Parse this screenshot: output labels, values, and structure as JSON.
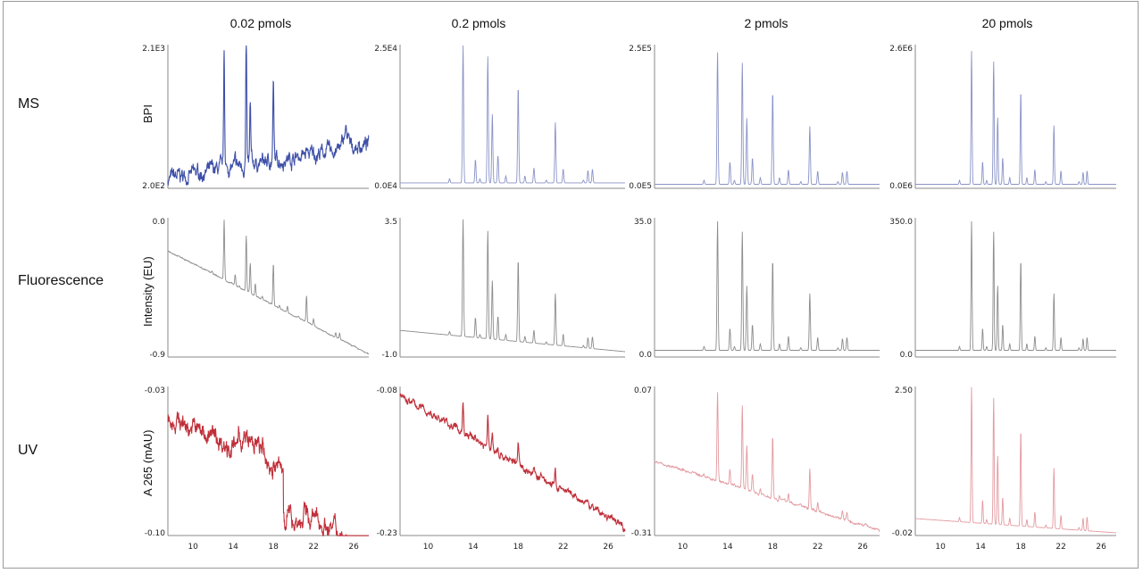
{
  "chart_data": {
    "type": "line",
    "title": "",
    "column_titles": [
      "0.02 pmols",
      "0.2 pmols",
      "2 pmols",
      "20 pmols"
    ],
    "row_labels": [
      "MS",
      "Fluorescence",
      "UV"
    ],
    "ylabels": [
      "BPI",
      "Intensity (EU)",
      "A 265  (mAU)"
    ],
    "xlabel": "",
    "x_ticks": [
      10,
      14,
      18,
      22,
      26
    ],
    "xlim": [
      7.5,
      27.5
    ],
    "peak_times": [
      11.9,
      13.1,
      14.2,
      14.6,
      15.3,
      15.7,
      16.2,
      16.9,
      18.0,
      18.6,
      19.4,
      20.5,
      21.3,
      22.0,
      23.8,
      24.2,
      24.6
    ],
    "peak_rel_heights": [
      0.03,
      1.0,
      0.17,
      0.03,
      0.92,
      0.5,
      0.2,
      0.05,
      0.7,
      0.05,
      0.11,
      0.02,
      0.44,
      0.1,
      0.02,
      0.09,
      0.1
    ],
    "colors": {
      "MS": "#3d4fa8",
      "MS_light": "#8a93c7",
      "Fluorescence": "#8c8c8c",
      "UV": "#c0303a",
      "UV_light": "#e39aa0"
    },
    "panels": [
      {
        "row": "MS",
        "column": "0.02 pmols",
        "ylim_labels": [
          "2.0E2",
          "2.1E3"
        ],
        "style": "noisy",
        "signal": 0.9,
        "baseline_trend": [
          0.05,
          0.3
        ],
        "noise": 0.06
      },
      {
        "row": "MS",
        "column": "0.2 pmols",
        "ylim_labels": [
          "0.0E4",
          "2.5E4"
        ],
        "style": "clean",
        "signal": 1.0,
        "baseline_trend": [
          0.02,
          0.02
        ],
        "noise": 0.0
      },
      {
        "row": "MS",
        "column": "2 pmols",
        "ylim_labels": [
          "0.0E5",
          "2.5E5"
        ],
        "style": "clean",
        "signal": 0.96,
        "baseline_trend": [
          0.01,
          0.01
        ],
        "noise": 0.0
      },
      {
        "row": "MS",
        "column": "20 pmols",
        "ylim_labels": [
          "0.0E6",
          "2.6E6"
        ],
        "style": "clean",
        "signal": 0.97,
        "baseline_trend": [
          0.01,
          0.01
        ],
        "noise": 0.0
      },
      {
        "row": "Fluorescence",
        "column": "0.02 pmols",
        "ylim_labels": [
          "-0.9",
          "0.0"
        ],
        "style": "sloped",
        "signal": 0.45,
        "baseline_trend": [
          0.78,
          0.0
        ],
        "noise": 0.005
      },
      {
        "row": "Fluorescence",
        "column": "0.2 pmols",
        "ylim_labels": [
          "-1.0",
          "3.5"
        ],
        "style": "sloped",
        "signal": 0.88,
        "baseline_trend": [
          0.18,
          0.02
        ],
        "noise": 0.0
      },
      {
        "row": "Fluorescence",
        "column": "2 pmols",
        "ylim_labels": [
          "0.0",
          "35.0"
        ],
        "style": "clean",
        "signal": 0.97,
        "baseline_trend": [
          0.03,
          0.03
        ],
        "noise": 0.0
      },
      {
        "row": "Fluorescence",
        "column": "20 pmols",
        "ylim_labels": [
          "0.0",
          "350.0"
        ],
        "style": "clean",
        "signal": 0.97,
        "baseline_trend": [
          0.03,
          0.03
        ],
        "noise": 0.0
      },
      {
        "row": "UV",
        "column": "0.02 pmols",
        "ylim_labels": [
          "-0.10",
          "-0.03"
        ],
        "style": "noise-only",
        "signal": 0.0,
        "baseline_trend": [
          0.82,
          0.15
        ],
        "noise": 0.08
      },
      {
        "row": "UV",
        "column": "0.2 pmols",
        "ylim_labels": [
          "-0.23",
          "-0.08"
        ],
        "style": "sloped-noisy",
        "signal": 0.22,
        "baseline_trend": [
          0.96,
          0.04
        ],
        "noise": 0.03
      },
      {
        "row": "UV",
        "column": "2 pmols",
        "ylim_labels": [
          "-0.31",
          "0.07"
        ],
        "style": "sloped",
        "signal": 0.62,
        "baseline_trend": [
          0.5,
          0.02
        ],
        "noise": 0.01
      },
      {
        "row": "UV",
        "column": "20 pmols",
        "ylim_labels": [
          "-0.02",
          "2.50"
        ],
        "style": "sloped",
        "signal": 0.96,
        "baseline_trend": [
          0.1,
          0.0
        ],
        "noise": 0.0
      }
    ]
  }
}
